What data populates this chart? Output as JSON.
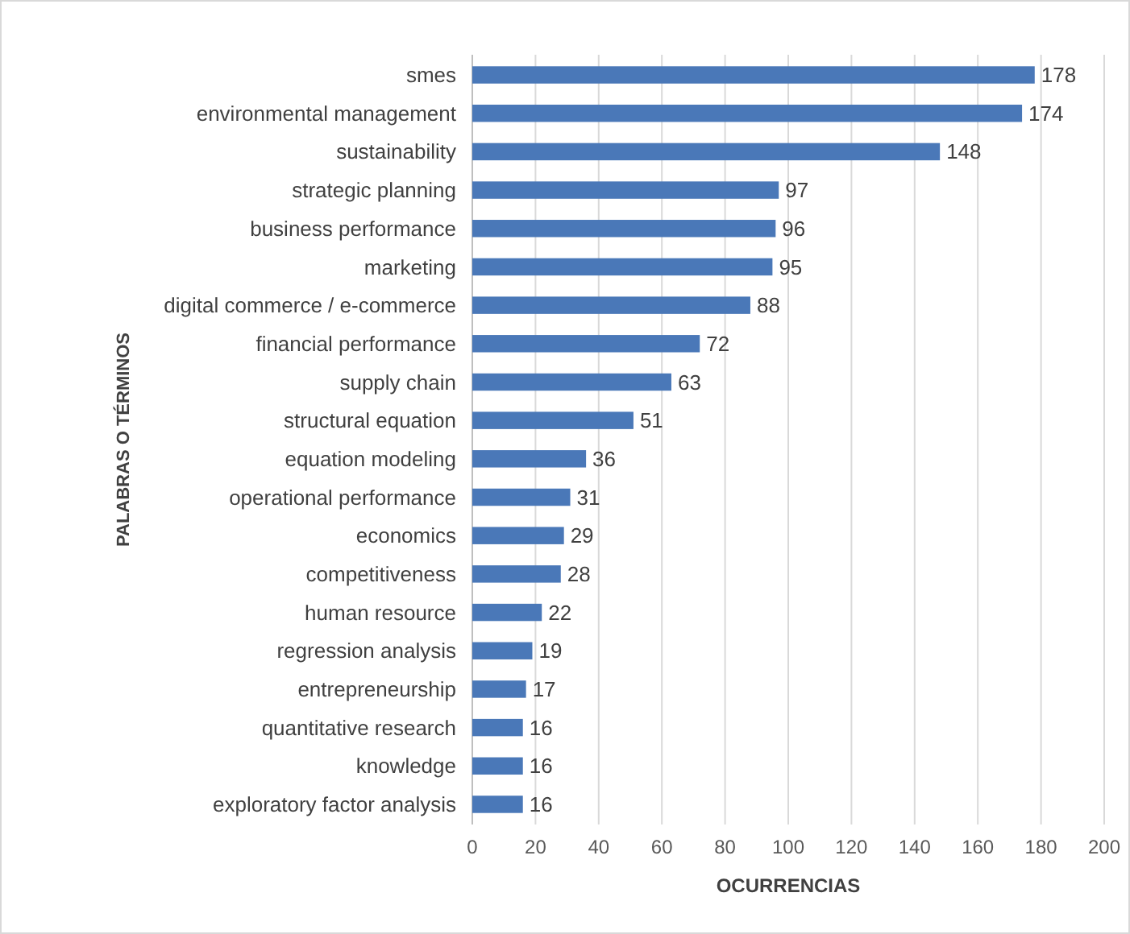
{
  "chart_data": {
    "type": "bar",
    "orientation": "horizontal",
    "xlabel": "OCURRENCIAS",
    "ylabel": "PALABRAS O TÉRMINOS",
    "categories": [
      "smes",
      "environmental management",
      "sustainability",
      "strategic planning",
      "business performance",
      "marketing",
      "digital commerce / e-commerce",
      "financial performance",
      "supply chain",
      "structural equation",
      "equation modeling",
      "operational performance",
      "economics",
      "competitiveness",
      "human resource",
      "regression analysis",
      "entrepreneurship",
      "quantitative research",
      "knowledge",
      "exploratory factor analysis"
    ],
    "values": [
      178,
      174,
      148,
      97,
      96,
      95,
      88,
      72,
      63,
      51,
      36,
      31,
      29,
      28,
      22,
      19,
      17,
      16,
      16,
      16
    ],
    "color": "#4a78b8",
    "xlim": [
      0,
      200
    ],
    "xticks": [
      0,
      20,
      40,
      60,
      80,
      100,
      120,
      140,
      160,
      180,
      200
    ],
    "grid": "x",
    "data_labels": true
  }
}
